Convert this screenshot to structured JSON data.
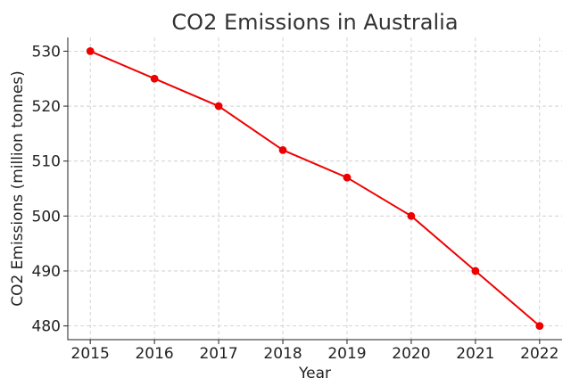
{
  "chart_data": {
    "type": "line",
    "title": "CO2 Emissions in Australia",
    "xlabel": "Year",
    "ylabel": "CO2 Emissions (million tonnes)",
    "x": [
      2015,
      2016,
      2017,
      2018,
      2019,
      2020,
      2021,
      2022
    ],
    "series": [
      {
        "values": [
          530,
          525,
          520,
          512,
          507,
          500,
          490,
          480
        ],
        "color": "#ee0000",
        "marker": "circle"
      }
    ],
    "xticks": [
      "2015",
      "2016",
      "2017",
      "2018",
      "2019",
      "2020",
      "2021",
      "2022"
    ],
    "yticks": [
      "480",
      "490",
      "500",
      "510",
      "520",
      "530"
    ],
    "ylim": [
      477.5,
      532.5
    ],
    "grid": true,
    "grid_style": "dashed"
  }
}
